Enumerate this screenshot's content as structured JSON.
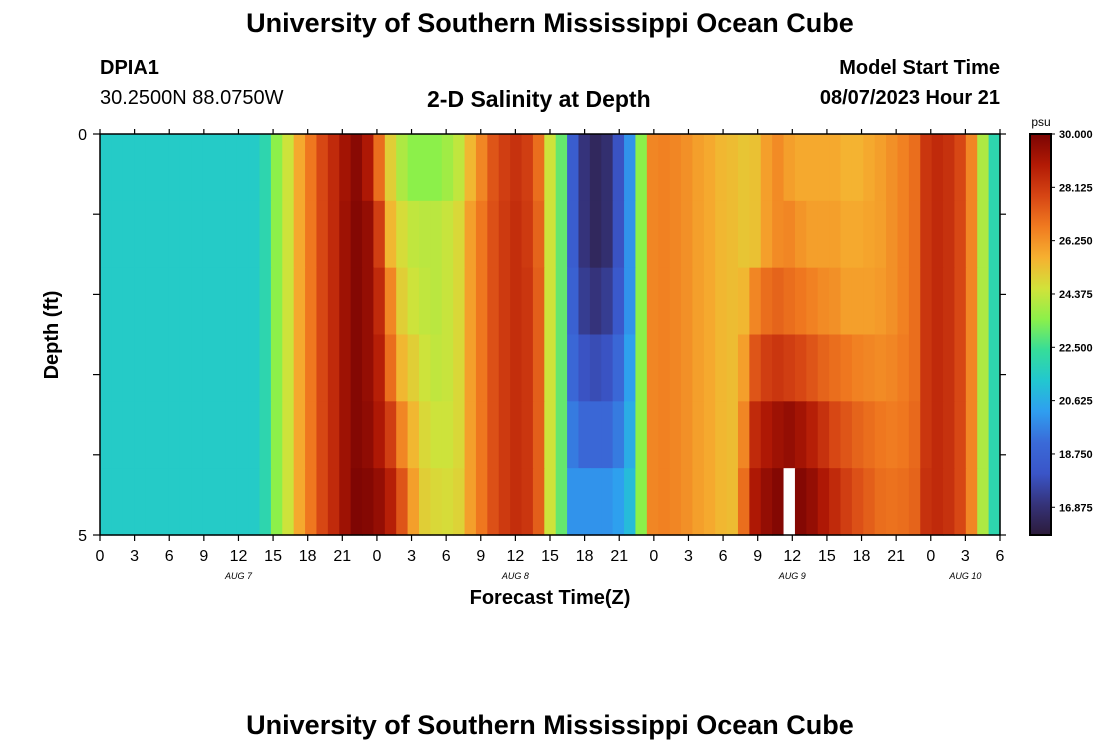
{
  "header": {
    "title": "University of Southern Mississippi Ocean Cube",
    "station": "DPIA1",
    "coords": "30.2500N  88.0750W",
    "plot_title": "2-D Salinity at Depth",
    "model_start_label": "Model Start Time",
    "model_start_value": "08/07/2023 Hour 21"
  },
  "footer": {
    "title": "University of Southern Mississippi Ocean Cube"
  },
  "colors": {
    "stops": [
      "#2c1b3a",
      "#35337a",
      "#3a55c8",
      "#3a6ad8",
      "#2f9ef0",
      "#22c7d0",
      "#36dd99",
      "#8cf04a",
      "#d2e23a",
      "#f6b030",
      "#f07a20",
      "#d64514",
      "#b21a05",
      "#7a0403"
    ],
    "missing": "#ffffff"
  },
  "chart_data": {
    "type": "heatmap",
    "title": "2-D Salinity at Depth",
    "xlabel": "Forecast Time(Z)",
    "ylabel": "Depth (ft)",
    "ylim": [
      0,
      5
    ],
    "y_ticks": [
      "0",
      "5"
    ],
    "x_hours": [
      0,
      1,
      2,
      3,
      4,
      5,
      6,
      7,
      8,
      9,
      10,
      11,
      12,
      13,
      14,
      15,
      16,
      17,
      18,
      19,
      20,
      21,
      22,
      23,
      24,
      25,
      26,
      27,
      28,
      29,
      30,
      31,
      32,
      33,
      34,
      35,
      36,
      37,
      38,
      39,
      40,
      41,
      42,
      43,
      44,
      45,
      46,
      47,
      48,
      49,
      50,
      51,
      52,
      53,
      54,
      55,
      56,
      57,
      58,
      59,
      60,
      61,
      62,
      63,
      64,
      65,
      66,
      67,
      68,
      69,
      70,
      71,
      72,
      73,
      74,
      75,
      76,
      77,
      78
    ],
    "x_tick_labels": [
      "0",
      "3",
      "6",
      "9",
      "12",
      "15",
      "18",
      "21",
      "0",
      "3",
      "6",
      "9",
      "12",
      "15",
      "18",
      "21",
      "0",
      "3",
      "6",
      "9",
      "12",
      "15",
      "18",
      "21",
      "0",
      "3",
      "6"
    ],
    "x_tick_hours": [
      0,
      3,
      6,
      9,
      12,
      15,
      18,
      21,
      24,
      27,
      30,
      33,
      36,
      39,
      42,
      45,
      48,
      51,
      54,
      57,
      60,
      63,
      66,
      69,
      72,
      75,
      78
    ],
    "date_labels": [
      {
        "text": "AUG 7",
        "hour": 12
      },
      {
        "text": "AUG 8",
        "hour": 36
      },
      {
        "text": "AUG 9",
        "hour": 60
      },
      {
        "text": "AUG 10",
        "hour": 75
      }
    ],
    "colorbar": {
      "unit": "psu",
      "min": 15.9,
      "max": 30.0,
      "tick_values": [
        30.0,
        28.125,
        26.25,
        24.375,
        22.5,
        20.625,
        18.75,
        16.875
      ],
      "tick_labels": [
        "30.000",
        "28.125",
        "26.250",
        "24.375",
        "22.500",
        "20.625",
        "18.750",
        "16.875"
      ]
    },
    "rows": [
      {
        "depth": "0.0-0.5",
        "values": [
          21.5,
          21.5,
          21.5,
          21.5,
          21.5,
          21.5,
          21.5,
          21.5,
          21.5,
          21.5,
          21.5,
          21.5,
          21.5,
          21.5,
          22.0,
          23.5,
          24.5,
          25.8,
          26.8,
          27.8,
          28.5,
          29.2,
          29.7,
          29.0,
          27.0,
          25.0,
          24.0,
          23.5,
          23.5,
          23.5,
          23.8,
          24.3,
          25.5,
          26.5,
          27.5,
          28.0,
          28.3,
          28.0,
          27.0,
          24.5,
          23.0,
          18.5,
          17.0,
          16.5,
          16.8,
          18.0,
          20.0,
          23.5,
          26.5,
          26.6,
          26.5,
          26.3,
          26.0,
          25.8,
          25.5,
          25.4,
          25.2,
          25.3,
          26.0,
          26.4,
          26.0,
          25.8,
          25.8,
          25.8,
          25.8,
          25.6,
          25.6,
          25.8,
          26.0,
          26.3,
          26.6,
          27.0,
          28.2,
          28.5,
          28.3,
          27.8,
          26.5,
          24.0,
          22.0
        ]
      },
      {
        "depth": "0.5-1.5",
        "values": [
          21.5,
          21.5,
          21.5,
          21.5,
          21.5,
          21.5,
          21.5,
          21.5,
          21.5,
          21.5,
          21.5,
          21.5,
          21.5,
          21.5,
          22.0,
          23.5,
          24.5,
          25.8,
          26.8,
          27.8,
          28.5,
          29.3,
          29.8,
          29.5,
          28.0,
          25.5,
          24.7,
          24.3,
          24.2,
          24.2,
          24.4,
          24.8,
          26.0,
          26.8,
          27.6,
          28.1,
          28.4,
          28.1,
          27.2,
          24.5,
          23.0,
          18.5,
          17.0,
          16.5,
          16.8,
          18.0,
          20.0,
          23.5,
          26.5,
          26.6,
          26.5,
          26.3,
          26.0,
          25.8,
          25.5,
          25.4,
          25.2,
          25.3,
          26.0,
          26.4,
          26.5,
          26.2,
          26.0,
          26.0,
          26.0,
          25.8,
          25.8,
          25.9,
          26.0,
          26.3,
          26.6,
          27.0,
          28.2,
          28.5,
          28.3,
          27.8,
          26.5,
          24.0,
          22.0
        ]
      },
      {
        "depth": "1.5-2.5",
        "values": [
          21.5,
          21.5,
          21.5,
          21.5,
          21.5,
          21.5,
          21.5,
          21.5,
          21.5,
          21.5,
          21.5,
          21.5,
          21.5,
          21.5,
          22.0,
          23.5,
          24.5,
          25.8,
          26.8,
          27.8,
          28.5,
          29.3,
          29.8,
          29.5,
          28.5,
          26.5,
          25.0,
          24.5,
          24.3,
          24.2,
          24.4,
          24.8,
          26.0,
          26.8,
          27.6,
          28.1,
          28.4,
          28.2,
          27.3,
          24.5,
          23.0,
          18.7,
          17.3,
          17.0,
          17.3,
          18.3,
          20.0,
          23.5,
          26.5,
          26.6,
          26.5,
          26.3,
          26.0,
          25.8,
          25.5,
          25.4,
          25.5,
          26.5,
          27.0,
          27.2,
          27.0,
          26.8,
          26.6,
          26.4,
          26.3,
          26.0,
          26.0,
          26.0,
          26.1,
          26.3,
          26.6,
          27.0,
          28.2,
          28.5,
          28.3,
          27.8,
          26.5,
          24.0,
          22.0
        ]
      },
      {
        "depth": "2.5-3.5",
        "values": [
          21.5,
          21.5,
          21.5,
          21.5,
          21.5,
          21.5,
          21.5,
          21.5,
          21.5,
          21.5,
          21.5,
          21.5,
          21.5,
          21.5,
          22.0,
          23.5,
          24.5,
          25.8,
          26.8,
          27.8,
          28.5,
          29.3,
          29.8,
          29.5,
          28.8,
          27.0,
          25.5,
          25.0,
          24.5,
          24.3,
          24.4,
          24.8,
          26.0,
          26.8,
          27.6,
          28.1,
          28.4,
          28.2,
          27.3,
          24.5,
          23.0,
          19.0,
          18.0,
          17.8,
          18.0,
          19.0,
          20.3,
          23.5,
          26.5,
          26.6,
          26.5,
          26.3,
          26.0,
          25.8,
          25.5,
          25.4,
          26.0,
          27.5,
          28.0,
          28.2,
          28.0,
          27.8,
          27.5,
          27.2,
          27.0,
          26.8,
          26.6,
          26.5,
          26.4,
          26.5,
          26.7,
          27.0,
          28.2,
          28.5,
          28.3,
          27.8,
          26.5,
          24.0,
          22.0
        ]
      },
      {
        "depth": "3.5-4.5",
        "values": [
          21.5,
          21.5,
          21.5,
          21.5,
          21.5,
          21.5,
          21.5,
          21.5,
          21.5,
          21.5,
          21.5,
          21.5,
          21.5,
          21.5,
          22.0,
          23.5,
          24.5,
          25.8,
          26.8,
          27.8,
          28.5,
          29.3,
          29.8,
          29.6,
          29.0,
          28.0,
          26.5,
          25.5,
          24.8,
          24.5,
          24.5,
          24.8,
          26.0,
          26.8,
          27.6,
          28.1,
          28.4,
          28.2,
          27.3,
          24.5,
          23.0,
          19.5,
          19.0,
          19.0,
          19.0,
          19.5,
          20.6,
          23.5,
          26.5,
          26.6,
          26.5,
          26.3,
          26.0,
          25.8,
          25.5,
          25.4,
          26.5,
          28.5,
          29.0,
          29.3,
          29.5,
          29.2,
          28.8,
          28.3,
          27.8,
          27.5,
          27.2,
          27.0,
          26.8,
          26.7,
          26.8,
          27.1,
          28.2,
          28.5,
          28.3,
          27.8,
          26.5,
          24.0,
          22.0
        ]
      },
      {
        "depth": "4.5-5.0",
        "values": [
          21.5,
          21.5,
          21.5,
          21.5,
          21.5,
          21.5,
          21.5,
          21.5,
          21.5,
          21.5,
          21.5,
          21.5,
          21.5,
          21.5,
          22.0,
          23.5,
          24.5,
          25.8,
          26.8,
          27.8,
          28.5,
          29.3,
          29.9,
          29.8,
          29.5,
          28.8,
          27.5,
          26.0,
          25.0,
          24.8,
          24.7,
          24.9,
          26.0,
          26.8,
          27.6,
          28.1,
          28.4,
          28.2,
          27.3,
          24.5,
          23.0,
          20.0,
          20.0,
          20.0,
          20.0,
          20.3,
          21.0,
          23.5,
          26.5,
          26.6,
          26.5,
          26.3,
          26.0,
          25.8,
          25.5,
          25.4,
          27.0,
          29.0,
          29.5,
          29.8,
          null,
          29.8,
          29.5,
          29.0,
          28.5,
          28.0,
          27.6,
          27.3,
          27.0,
          26.9,
          27.0,
          27.2,
          28.3,
          28.5,
          28.3,
          27.8,
          26.5,
          24.0,
          22.0
        ]
      }
    ]
  }
}
